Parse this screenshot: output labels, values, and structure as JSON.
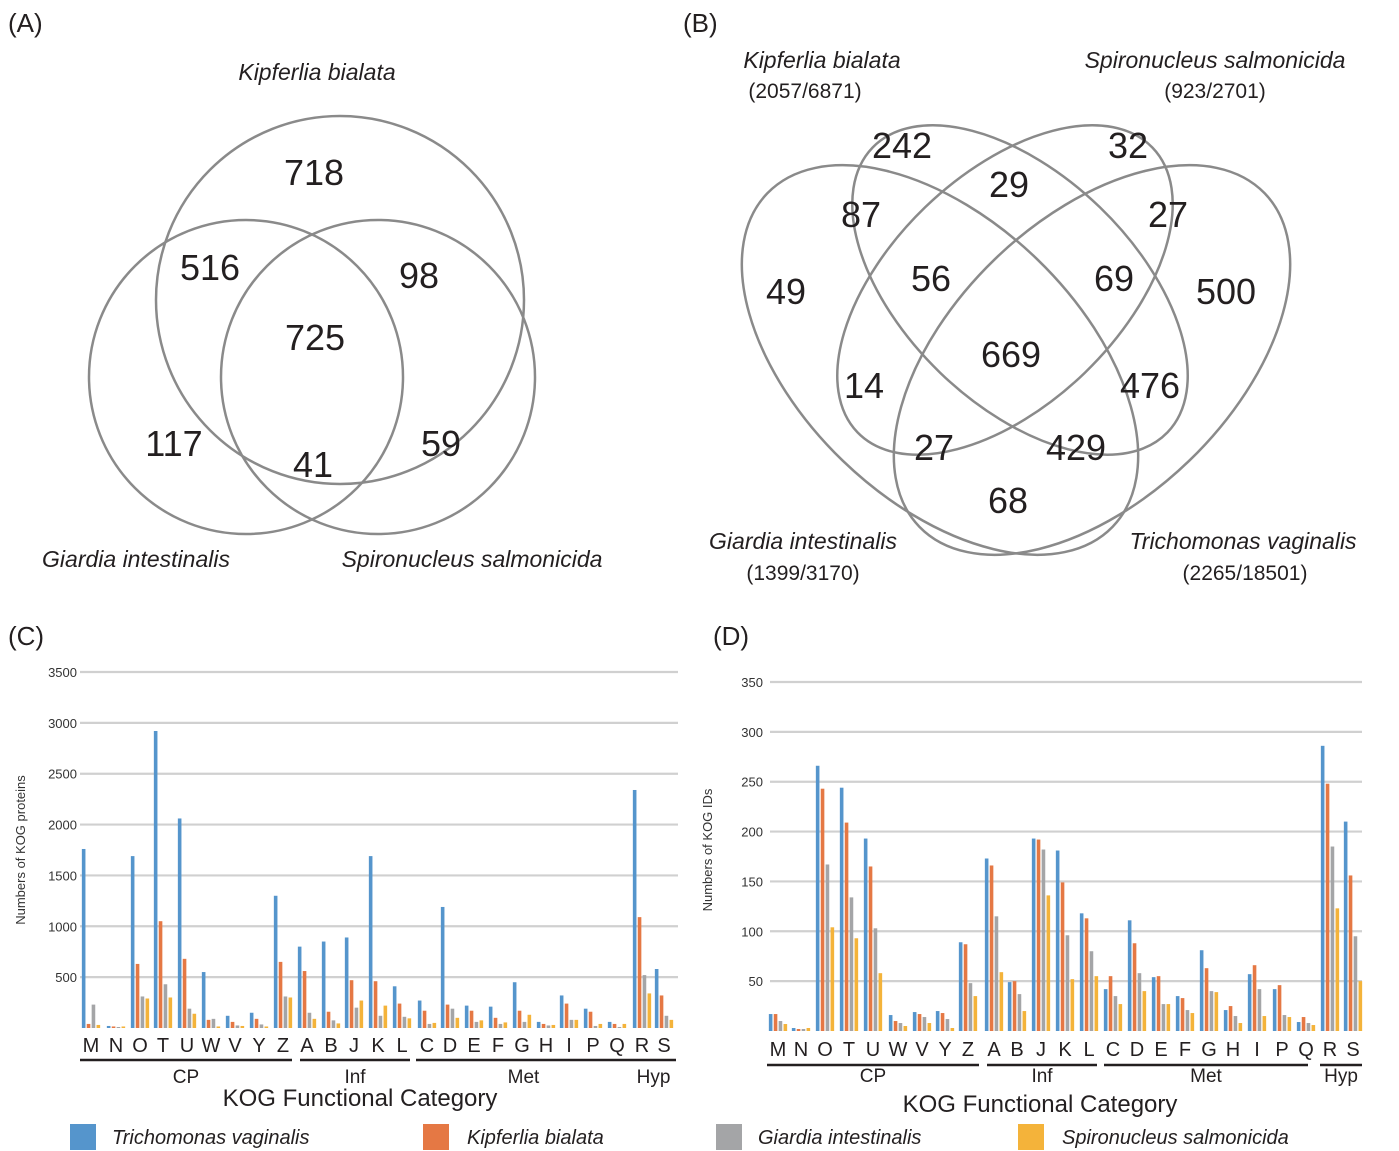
{
  "panels": {
    "a": "(A)",
    "b": "(B)",
    "c": "(C)",
    "d": "(D)"
  },
  "venn_a": {
    "sets": [
      "Kipferlia bialata",
      "Giardia intestinalis",
      "Spironucleus salmonicida"
    ],
    "regions": {
      "k_only": "718",
      "k_g": "516",
      "k_s": "98",
      "k_g_s": "725",
      "g_only": "117",
      "g_s": "41",
      "s_only": "59"
    }
  },
  "venn_b": {
    "sets": [
      {
        "name": "Kipferlia bialata",
        "counts": "(2057/6871)"
      },
      {
        "name": "Spironucleus salmonicida",
        "counts": "(923/2701)"
      },
      {
        "name": "Giardia intestinalis",
        "counts": "(1399/3170)"
      },
      {
        "name": "Trichomonas vaginalis",
        "counts": "(2265/18501)"
      }
    ],
    "regions": {
      "k_only": "242",
      "k_s": "29",
      "s_only": "32",
      "g_k": "87",
      "s_t": "27",
      "g_only": "49",
      "g_k_s": "56",
      "k_s_t": "69",
      "t_only": "500",
      "all": "669",
      "g_k_t": "14",
      "g_s_t": "476",
      "g_k_s_t_left": "27",
      "k_t": "429",
      "g_t": "68"
    }
  },
  "legend": {
    "colors": [
      "#5595cc",
      "#e57844",
      "#a4a5a7",
      "#f4b33a"
    ],
    "labels": [
      "Trichomonas vaginalis",
      "Kipferlia bialata",
      "Giardia intestinalis",
      "Spironucleus salmonicida"
    ]
  },
  "chart_data": [
    {
      "type": "bar",
      "panel": "(C)",
      "ylabel": "Numbers of KOG proteins",
      "xlabel": "KOG Functional Category",
      "ylim": [
        0,
        3500
      ],
      "yticks": [
        500,
        1000,
        1500,
        2000,
        2500,
        3000,
        3500
      ],
      "grid": true,
      "categories": [
        "M",
        "N",
        "O",
        "T",
        "U",
        "W",
        "V",
        "Y",
        "Z",
        "A",
        "B",
        "J",
        "K",
        "L",
        "C",
        "D",
        "E",
        "F",
        "G",
        "H",
        "I",
        "P",
        "Q",
        "R",
        "S"
      ],
      "groups": [
        {
          "label": "CP",
          "from": 0,
          "to": 8
        },
        {
          "label": "Inf",
          "from": 9,
          "to": 13
        },
        {
          "label": "Met",
          "from": 14,
          "to": 22
        },
        {
          "label": "Hyp",
          "from": 23,
          "to": 24
        }
      ],
      "series": [
        {
          "name": "Trichomonas vaginalis",
          "values": [
            1760,
            20,
            1690,
            2920,
            2060,
            550,
            120,
            150,
            1300,
            800,
            850,
            890,
            1690,
            410,
            270,
            1190,
            220,
            210,
            450,
            60,
            320,
            190,
            60,
            2340,
            580
          ]
        },
        {
          "name": "Kipferlia bialata",
          "values": [
            40,
            15,
            630,
            1050,
            680,
            80,
            60,
            90,
            650,
            560,
            160,
            470,
            460,
            240,
            170,
            230,
            170,
            100,
            170,
            40,
            240,
            160,
            40,
            1090,
            320
          ]
        },
        {
          "name": "Giardia intestinalis",
          "values": [
            230,
            10,
            310,
            430,
            190,
            90,
            25,
            35,
            310,
            150,
            75,
            200,
            120,
            110,
            40,
            190,
            60,
            40,
            60,
            25,
            80,
            20,
            10,
            520,
            120
          ]
        },
        {
          "name": "Spironucleus salmonicida",
          "values": [
            30,
            15,
            290,
            300,
            140,
            15,
            20,
            15,
            300,
            90,
            45,
            270,
            220,
            95,
            50,
            100,
            75,
            55,
            130,
            30,
            80,
            40,
            40,
            340,
            80
          ]
        }
      ]
    },
    {
      "type": "bar",
      "panel": "(D)",
      "ylabel": "Numbers of KOG IDs",
      "xlabel": "KOG Functional Category",
      "ylim": [
        0,
        350
      ],
      "yticks": [
        50,
        100,
        150,
        200,
        250,
        300,
        350
      ],
      "grid": true,
      "categories": [
        "M",
        "N",
        "O",
        "T",
        "U",
        "W",
        "V",
        "Y",
        "Z",
        "A",
        "B",
        "J",
        "K",
        "L",
        "C",
        "D",
        "E",
        "F",
        "G",
        "H",
        "I",
        "P",
        "Q",
        "R",
        "S"
      ],
      "groups": [
        {
          "label": "CP",
          "from": 0,
          "to": 8
        },
        {
          "label": "Inf",
          "from": 9,
          "to": 13
        },
        {
          "label": "Met",
          "from": 14,
          "to": 22
        },
        {
          "label": "Hyp",
          "from": 23,
          "to": 24
        }
      ],
      "series": [
        {
          "name": "Trichomonas vaginalis",
          "values": [
            17,
            3,
            266,
            244,
            193,
            16,
            19,
            20,
            89,
            173,
            49,
            193,
            181,
            118,
            42,
            111,
            54,
            35,
            81,
            21,
            57,
            42,
            9,
            286,
            210
          ]
        },
        {
          "name": "Kipferlia bialata",
          "values": [
            17,
            2,
            243,
            209,
            165,
            10,
            17,
            18,
            87,
            166,
            50,
            192,
            149,
            113,
            55,
            88,
            55,
            33,
            63,
            25,
            66,
            46,
            14,
            248,
            156
          ]
        },
        {
          "name": "Giardia intestinalis",
          "values": [
            10,
            2,
            167,
            134,
            103,
            8,
            14,
            12,
            48,
            115,
            37,
            182,
            96,
            80,
            35,
            58,
            27,
            21,
            40,
            15,
            42,
            16,
            8,
            185,
            95
          ]
        },
        {
          "name": "Spironucleus salmonicida",
          "values": [
            7,
            3,
            104,
            93,
            58,
            5,
            8,
            3,
            35,
            59,
            20,
            136,
            52,
            55,
            27,
            40,
            27,
            18,
            39,
            8,
            15,
            14,
            6,
            123,
            50
          ]
        }
      ]
    }
  ]
}
